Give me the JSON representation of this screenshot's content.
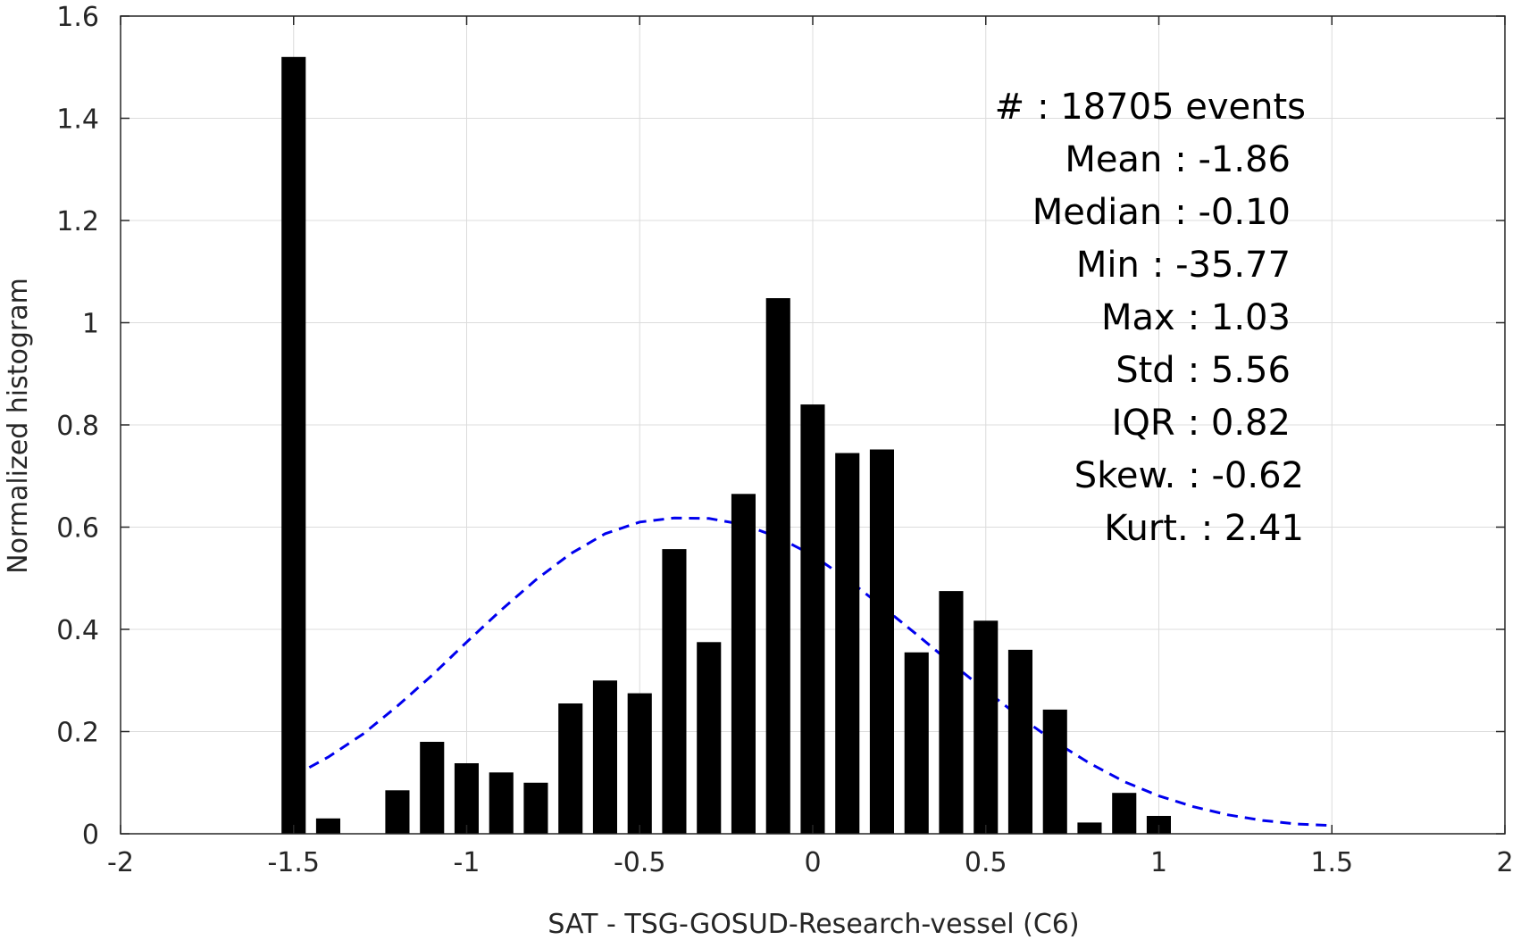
{
  "chart_data": {
    "type": "bar",
    "xlabel": "SAT - TSG-GOSUD-Research-vessel (C6)",
    "ylabel": "Normalized histogram",
    "xlim": [
      -2,
      2
    ],
    "ylim": [
      0,
      1.6
    ],
    "xticks": [
      -2,
      -1.5,
      -1,
      -0.5,
      0,
      0.5,
      1,
      1.5,
      2
    ],
    "xtick_labels": [
      "-2",
      "-1.5",
      "-1",
      "-0.5",
      "0",
      "0.5",
      "1",
      "1.5",
      "2"
    ],
    "yticks": [
      0,
      0.2,
      0.4,
      0.6,
      0.8,
      1,
      1.2,
      1.4,
      1.6
    ],
    "ytick_labels": [
      "0",
      "0.2",
      "0.4",
      "0.6",
      "0.8",
      "1",
      "1.2",
      "1.4",
      "1.6"
    ],
    "grid": true,
    "bar_width": 0.07,
    "bar_color": "#000000",
    "bars": [
      {
        "x": -1.5,
        "y": 1.52
      },
      {
        "x": -1.4,
        "y": 0.03
      },
      {
        "x": -1.2,
        "y": 0.085
      },
      {
        "x": -1.1,
        "y": 0.18
      },
      {
        "x": -1.0,
        "y": 0.138
      },
      {
        "x": -0.9,
        "y": 0.12
      },
      {
        "x": -0.8,
        "y": 0.1
      },
      {
        "x": -0.7,
        "y": 0.255
      },
      {
        "x": -0.6,
        "y": 0.3
      },
      {
        "x": -0.5,
        "y": 0.275
      },
      {
        "x": -0.4,
        "y": 0.557
      },
      {
        "x": -0.3,
        "y": 0.375
      },
      {
        "x": -0.2,
        "y": 0.665
      },
      {
        "x": -0.1,
        "y": 1.048
      },
      {
        "x": 0.0,
        "y": 0.84
      },
      {
        "x": 0.1,
        "y": 0.745
      },
      {
        "x": 0.2,
        "y": 0.752
      },
      {
        "x": 0.3,
        "y": 0.355
      },
      {
        "x": 0.4,
        "y": 0.475
      },
      {
        "x": 0.5,
        "y": 0.417
      },
      {
        "x": 0.6,
        "y": 0.36
      },
      {
        "x": 0.7,
        "y": 0.243
      },
      {
        "x": 0.8,
        "y": 0.022
      },
      {
        "x": 0.9,
        "y": 0.08
      },
      {
        "x": 1.0,
        "y": 0.035
      }
    ],
    "fit_curve": {
      "style": "dashed",
      "color": "#0000ee",
      "points": [
        [
          -1.5,
          0.113
        ],
        [
          -1.4,
          0.15
        ],
        [
          -1.3,
          0.195
        ],
        [
          -1.2,
          0.25
        ],
        [
          -1.1,
          0.31
        ],
        [
          -1.0,
          0.375
        ],
        [
          -0.9,
          0.438
        ],
        [
          -0.8,
          0.497
        ],
        [
          -0.7,
          0.548
        ],
        [
          -0.6,
          0.587
        ],
        [
          -0.5,
          0.61
        ],
        [
          -0.4,
          0.618
        ],
        [
          -0.3,
          0.617
        ],
        [
          -0.2,
          0.605
        ],
        [
          -0.1,
          0.58
        ],
        [
          0.0,
          0.545
        ],
        [
          0.1,
          0.498
        ],
        [
          0.2,
          0.445
        ],
        [
          0.3,
          0.39
        ],
        [
          0.4,
          0.334
        ],
        [
          0.5,
          0.28
        ],
        [
          0.6,
          0.228
        ],
        [
          0.7,
          0.18
        ],
        [
          0.8,
          0.138
        ],
        [
          0.9,
          0.102
        ],
        [
          1.0,
          0.074
        ],
        [
          1.1,
          0.053
        ],
        [
          1.2,
          0.037
        ],
        [
          1.3,
          0.026
        ],
        [
          1.4,
          0.019
        ],
        [
          1.5,
          0.016
        ]
      ]
    },
    "annotations": {
      "stats": [
        {
          "label": "#  ",
          "value": ": 18705 events"
        },
        {
          "label": "Mean",
          "value": ": -1.86"
        },
        {
          "label": "Median",
          "value": ": -0.10"
        },
        {
          "label": "Min",
          "value": ": -35.77"
        },
        {
          "label": "Max",
          "value": ": 1.03"
        },
        {
          "label": "Std",
          "value": ": 5.56"
        },
        {
          "label": "IQR",
          "value": ": 0.82"
        },
        {
          "label": "Skew.",
          "value": ": -0.62"
        },
        {
          "label": "Kurt.",
          "value": ": 2.41"
        }
      ]
    }
  }
}
